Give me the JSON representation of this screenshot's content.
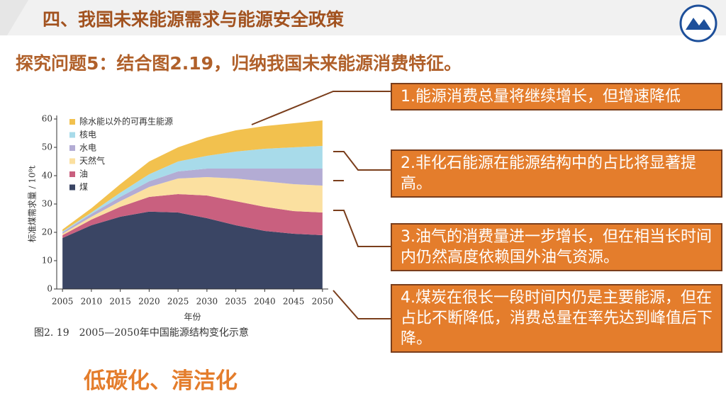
{
  "header": {
    "title": "四、我国未来能源需求与能源安全政策"
  },
  "question": "探究问题5：结合图2.19，归纳我国未来能源消费特征。",
  "chart_data": {
    "type": "area",
    "stacked": true,
    "caption": "图2. 19　2005—2050年中国能源结构变化示意",
    "x_label": "年份",
    "y_label": "标准煤需求量 / 10⁸t",
    "x": [
      2005,
      2010,
      2015,
      2020,
      2025,
      2030,
      2035,
      2040,
      2045,
      2050
    ],
    "series": [
      {
        "name": "煤",
        "color": "#3a4564",
        "values": [
          18,
          22.5,
          25.5,
          27.3,
          27,
          25,
          22.5,
          20.5,
          19.5,
          19
        ]
      },
      {
        "name": "油",
        "color": "#c9607f",
        "values": [
          1,
          2,
          3.5,
          5.2,
          6.5,
          8,
          8.5,
          8.5,
          8,
          8
        ]
      },
      {
        "name": "天然气",
        "color": "#fbe0a0",
        "values": [
          0.5,
          1,
          2,
          3.5,
          5.5,
          6.5,
          8,
          9,
          9.5,
          9.5
        ]
      },
      {
        "name": "水电",
        "color": "#b3acd4",
        "values": [
          0.5,
          1,
          1.5,
          2,
          2.5,
          3,
          3.5,
          4.5,
          5.5,
          6
        ]
      },
      {
        "name": "核电",
        "color": "#a8dbea",
        "values": [
          0.3,
          0.5,
          1.5,
          2.5,
          3.5,
          4.5,
          6,
          7,
          7.5,
          8
        ]
      },
      {
        "name": "除水能以外的可再生能源",
        "color": "#f2c14e",
        "values": [
          0.7,
          1.5,
          3,
          4.5,
          5,
          6.5,
          7.5,
          8,
          8.5,
          9
        ]
      }
    ],
    "xlim": [
      2004,
      2051
    ],
    "ylim": [
      0,
      60
    ],
    "xticks": [
      2005,
      2010,
      2015,
      2020,
      2025,
      2030,
      2035,
      2040,
      2045,
      2050
    ],
    "yticks": [
      0,
      10,
      20,
      30,
      40,
      50,
      60
    ]
  },
  "boxes": [
    "1.能源消费总量将继续增长，但增速降低",
    "2.非化石能源在能源结构中的占比将显著提高。",
    "3.油气的消费量进一步增长，但在相当长时间内仍然高度依赖国外油气资源。",
    "4.煤炭在很长一段时间内仍是主要能源，但在占比不断降低，消费总量在率先达到峰值后下降。"
  ],
  "conclusion": "低碳化、清洁化"
}
